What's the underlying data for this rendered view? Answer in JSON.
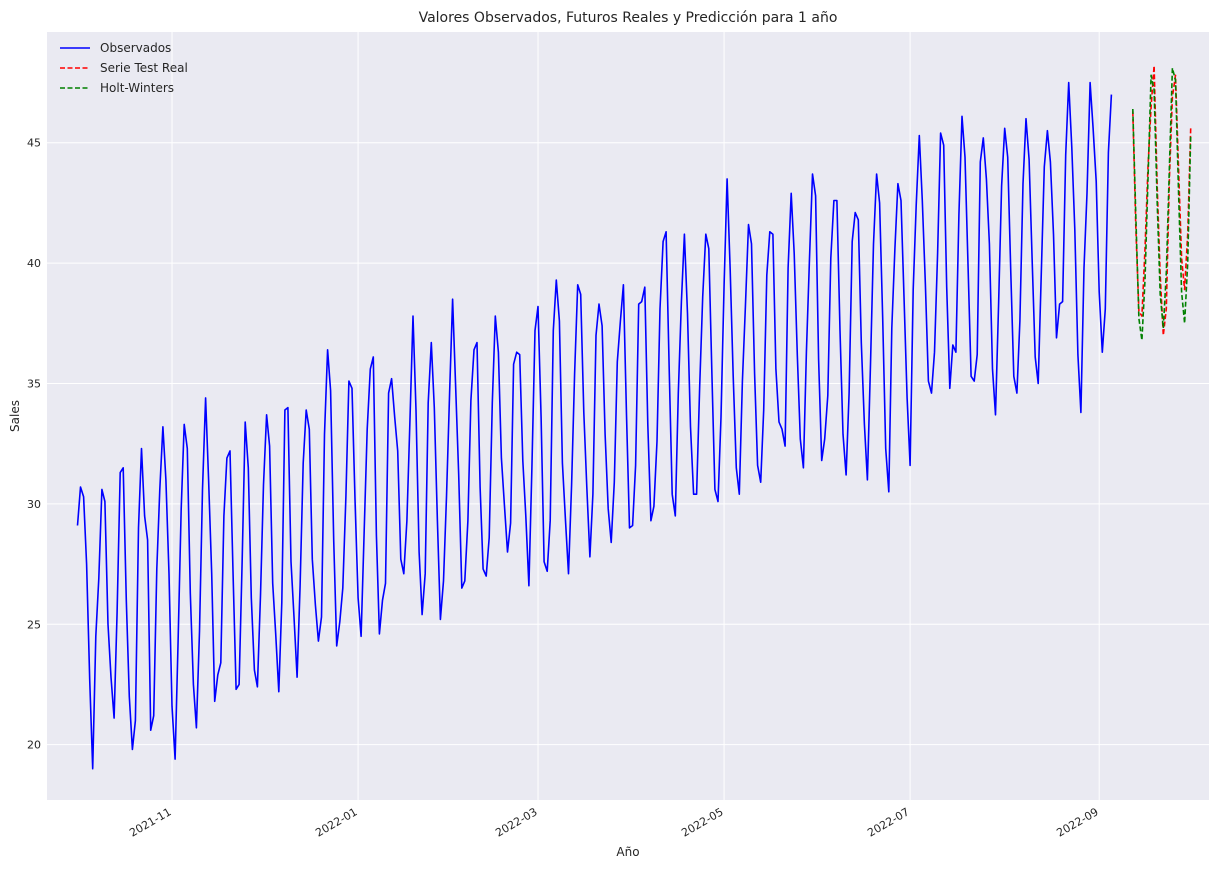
{
  "chart_data": {
    "type": "line",
    "title": "Valores Observados, Futuros Reales y Predicción para 1 año",
    "xlabel": "Año",
    "ylabel": "Sales",
    "x_type": "date",
    "xlim": [
      "2021-09-21",
      "2022-10-07"
    ],
    "ylim": [
      17.7,
      49.6
    ],
    "x_ticks": [
      "2021-11",
      "2022-01",
      "2022-03",
      "2022-05",
      "2022-07",
      "2022-09"
    ],
    "y_ticks": [
      20,
      25,
      30,
      35,
      40,
      45
    ],
    "grid": true,
    "legend_position": "upper left",
    "series": [
      {
        "name": "Observados",
        "color": "#0000ff",
        "style": "solid",
        "start_date": "2021-10-01",
        "step_days": 1,
        "values": [
          29.1,
          30.7,
          30.3,
          27.5,
          22.7,
          19.0,
          24.5,
          26.9,
          30.6,
          30.1,
          25.0,
          22.8,
          21.1,
          25.5,
          31.3,
          31.5,
          26.0,
          22.0,
          19.8,
          21.0,
          29.0,
          32.3,
          29.5,
          28.5,
          20.6,
          21.2,
          27.3,
          30.6,
          33.2,
          31.0,
          27.1,
          21.6,
          19.4,
          24.3,
          29.8,
          33.3,
          32.3,
          26.3,
          22.5,
          20.7,
          24.7,
          30.6,
          34.4,
          31.0,
          27.1,
          21.8,
          22.9,
          23.4,
          29.5,
          31.9,
          32.2,
          27.2,
          22.3,
          22.5,
          27.7,
          33.4,
          31.5,
          26.1,
          23.1,
          22.4,
          26.2,
          30.8,
          33.7,
          32.4,
          26.7,
          24.6,
          22.2,
          25.9,
          33.9,
          34.0,
          27.6,
          25.3,
          22.8,
          26.6,
          31.7,
          33.9,
          33.1,
          27.7,
          25.8,
          24.3,
          25.3,
          32.9,
          36.4,
          34.7,
          28.5,
          24.1,
          25.1,
          26.5,
          30.3,
          35.1,
          34.8,
          30.2,
          26.1,
          24.5,
          28.9,
          33.1,
          35.6,
          36.1,
          28.7,
          24.6,
          26.0,
          26.7,
          34.6,
          35.2,
          33.6,
          32.2,
          27.7,
          27.1,
          29.3,
          33.4,
          37.8,
          33.9,
          28.0,
          25.4,
          27.1,
          34.2,
          36.7,
          34.0,
          29.3,
          25.2,
          26.8,
          30.3,
          34.6,
          38.5,
          34.8,
          31.2,
          26.5,
          26.8,
          29.3,
          34.3,
          36.4,
          36.7,
          30.7,
          27.3,
          27.0,
          28.6,
          34.2,
          37.8,
          36.3,
          31.9,
          29.9,
          28.0,
          29.2,
          35.8,
          36.3,
          36.2,
          31.8,
          29.5,
          26.6,
          31.5,
          37.2,
          38.2,
          33.6,
          27.6,
          27.2,
          29.3,
          37.2,
          39.3,
          37.6,
          31.7,
          29.3,
          27.1,
          30.8,
          35.4,
          39.1,
          38.7,
          33.8,
          30.7,
          27.8,
          30.4,
          37.0,
          38.3,
          37.4,
          32.9,
          29.8,
          28.4,
          30.9,
          35.9,
          37.6,
          39.1,
          33.7,
          29.0,
          29.1,
          31.6,
          38.3,
          38.4,
          39.0,
          33.3,
          29.3,
          29.9,
          32.6,
          38.1,
          40.9,
          41.3,
          35.6,
          30.4,
          29.5,
          34.6,
          38.4,
          41.2,
          37.9,
          33.2,
          30.4,
          30.4,
          34.9,
          38.6,
          41.2,
          40.6,
          35.4,
          30.6,
          30.1,
          33.6,
          39.1,
          43.5,
          39.7,
          35.3,
          31.5,
          30.4,
          35.1,
          38.2,
          41.6,
          40.8,
          35.4,
          31.6,
          30.9,
          33.9,
          39.5,
          41.3,
          41.2,
          35.6,
          33.4,
          33.1,
          32.4,
          39.8,
          42.9,
          40.4,
          36.2,
          32.7,
          31.5,
          36.3,
          40.2,
          43.7,
          42.8,
          36.0,
          31.8,
          32.7,
          34.5,
          40.2,
          42.6,
          42.6,
          37.2,
          32.9,
          31.2,
          34.6,
          40.9,
          42.1,
          41.8,
          36.7,
          33.3,
          31.0,
          35.8,
          40.8,
          43.7,
          42.5,
          37.7,
          32.3,
          30.5,
          37.3,
          40.6,
          43.3,
          42.6,
          38.6,
          34.4,
          31.6,
          38.9,
          42.4,
          45.3,
          42.6,
          39.1,
          35.1,
          34.6,
          36.3,
          40.4,
          45.4,
          44.9,
          39.0,
          34.8,
          36.6,
          36.3,
          42.0,
          46.1,
          44.4,
          39.8,
          35.3,
          35.1,
          36.2,
          44.2,
          45.2,
          43.5,
          40.8,
          35.6,
          33.7,
          38.3,
          43.2,
          45.6,
          44.4,
          39.6,
          35.3,
          34.6,
          37.6,
          43.3,
          46.0,
          44.3,
          40.2,
          36.1,
          35.0,
          39.6,
          44.0,
          45.5,
          44.2,
          41.2,
          36.9,
          38.3,
          38.4,
          44.5,
          47.5,
          44.8,
          41.4,
          36.2,
          33.8,
          39.8,
          42.9,
          47.5,
          45.6,
          43.4,
          38.8,
          36.3,
          38.1,
          44.6,
          47.0
        ]
      },
      {
        "name": "Serie Test Real",
        "color": "#ff0000",
        "style": "dashed",
        "start_date": "2022-09-12",
        "step_days": 1,
        "values": [
          46.3,
          41.5,
          38.0,
          37.8,
          40.6,
          44.0,
          46.5,
          48.2,
          43.2,
          39.5,
          37.0,
          38.1,
          43.5,
          46.9,
          47.8,
          44.0,
          40.2,
          38.9,
          41.2,
          45.6
        ]
      },
      {
        "name": "Holt-Winters",
        "color": "#008000",
        "style": "dashed",
        "start_date": "2022-09-12",
        "step_days": 1,
        "values": [
          46.4,
          42.0,
          37.7,
          36.8,
          39.3,
          43.5,
          47.8,
          47.2,
          42.5,
          38.7,
          37.3,
          39.6,
          44.0,
          48.1,
          47.6,
          43.0,
          38.8,
          37.5,
          40.0,
          45.3
        ]
      }
    ]
  }
}
